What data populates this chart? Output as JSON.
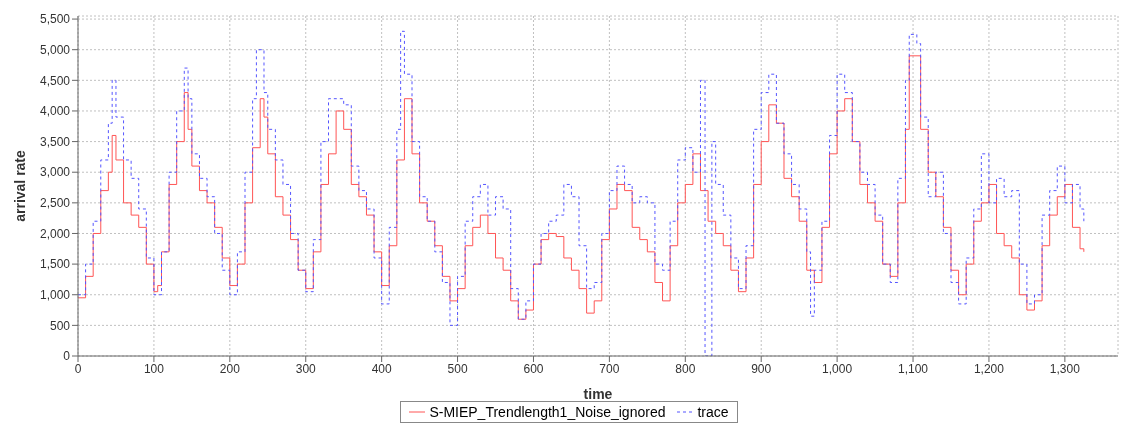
{
  "chart_data": {
    "type": "step",
    "xlabel": "time",
    "ylabel": "arrival rate",
    "xlim": [
      0,
      1370
    ],
    "ylim": [
      0,
      5550
    ],
    "xticks": [
      0,
      100,
      200,
      300,
      400,
      500,
      600,
      700,
      800,
      900,
      {
        "value": 1000,
        "label": "1,000"
      },
      {
        "value": 1100,
        "label": "1,100"
      },
      {
        "value": 1200,
        "label": "1,200"
      },
      {
        "value": 1300,
        "label": "1,300"
      }
    ],
    "yticks": [
      0,
      500,
      {
        "value": 1000,
        "label": "1,000"
      },
      {
        "value": 1500,
        "label": "1,500"
      },
      {
        "value": 2000,
        "label": "2,000"
      },
      {
        "value": 2500,
        "label": "2,500"
      },
      {
        "value": 3000,
        "label": "3,000"
      },
      {
        "value": 3500,
        "label": "3,500"
      },
      {
        "value": 4000,
        "label": "4,000"
      },
      {
        "value": 4500,
        "label": "4,500"
      },
      {
        "value": 5000,
        "label": "5,000"
      },
      {
        "value": 5500,
        "label": "5,500"
      }
    ],
    "grid": true,
    "legend": "bottom",
    "marker": "none",
    "series": [
      {
        "name": "S-MIEP_Trendlength1_Noise_ignored",
        "line_style": "solid",
        "color": "#ff5555",
        "x": [
          0,
          10,
          20,
          30,
          40,
          45,
          50,
          60,
          70,
          80,
          90,
          100,
          105,
          110,
          120,
          130,
          140,
          145,
          150,
          160,
          170,
          180,
          190,
          200,
          210,
          220,
          230,
          240,
          245,
          250,
          260,
          270,
          280,
          290,
          300,
          310,
          320,
          330,
          340,
          350,
          360,
          370,
          380,
          390,
          400,
          410,
          420,
          430,
          440,
          450,
          460,
          470,
          480,
          490,
          500,
          510,
          520,
          530,
          540,
          550,
          560,
          570,
          580,
          590,
          600,
          610,
          620,
          630,
          640,
          650,
          660,
          670,
          680,
          690,
          700,
          710,
          720,
          730,
          740,
          750,
          760,
          770,
          780,
          790,
          800,
          810,
          820,
          830,
          840,
          850,
          860,
          870,
          880,
          890,
          900,
          910,
          920,
          930,
          940,
          950,
          960,
          970,
          980,
          990,
          1000,
          1010,
          1020,
          1030,
          1040,
          1050,
          1060,
          1070,
          1080,
          1090,
          1095,
          1110,
          1120,
          1130,
          1140,
          1150,
          1160,
          1170,
          1180,
          1190,
          1200,
          1210,
          1220,
          1230,
          1240,
          1250,
          1260,
          1270,
          1280,
          1290,
          1300,
          1310,
          1320,
          1325
        ],
        "values": [
          950,
          1300,
          2000,
          2700,
          3000,
          3600,
          3200,
          2500,
          2300,
          2100,
          1500,
          1050,
          1150,
          1700,
          2800,
          3500,
          4300,
          3700,
          3100,
          2700,
          2500,
          2100,
          1600,
          1150,
          1500,
          2500,
          3400,
          4200,
          3900,
          3300,
          2600,
          2300,
          1900,
          1400,
          1100,
          1700,
          2800,
          3300,
          4000,
          3700,
          2800,
          2600,
          2300,
          1700,
          1150,
          1800,
          3200,
          4200,
          3300,
          2500,
          2200,
          1800,
          1300,
          900,
          1100,
          1800,
          2100,
          2300,
          2000,
          1600,
          1400,
          900,
          600,
          750,
          1500,
          1900,
          2000,
          1950,
          1600,
          1400,
          1100,
          700,
          900,
          1900,
          2400,
          2800,
          2700,
          2100,
          1900,
          1700,
          1200,
          900,
          1800,
          2500,
          2800,
          3300,
          2700,
          2200,
          2000,
          1800,
          1400,
          1050,
          1600,
          2800,
          3500,
          4100,
          3800,
          2900,
          2600,
          2200,
          1400,
          1200,
          2100,
          3300,
          4000,
          4200,
          3500,
          2800,
          2500,
          2200,
          1500,
          1300,
          2500,
          3700,
          4900,
          3700,
          3000,
          2600,
          2100,
          1400,
          1000,
          1500,
          2200,
          2500,
          2800,
          2000,
          1800,
          1600,
          1000,
          750,
          900,
          1800,
          2300,
          2600,
          2800,
          2100,
          1750,
          1700
        ]
      },
      {
        "name": "trace",
        "line_style": "dashed",
        "color": "#5555ff",
        "x": [
          0,
          10,
          20,
          30,
          40,
          45,
          50,
          60,
          70,
          80,
          90,
          100,
          110,
          120,
          130,
          140,
          145,
          150,
          160,
          170,
          180,
          190,
          200,
          210,
          220,
          230,
          235,
          245,
          250,
          260,
          270,
          280,
          290,
          300,
          310,
          320,
          330,
          340,
          350,
          360,
          370,
          380,
          390,
          400,
          410,
          420,
          425,
          430,
          440,
          450,
          460,
          470,
          480,
          490,
          500,
          510,
          520,
          530,
          540,
          550,
          560,
          570,
          580,
          590,
          600,
          610,
          620,
          630,
          640,
          650,
          660,
          670,
          680,
          690,
          700,
          710,
          720,
          730,
          740,
          750,
          760,
          770,
          780,
          790,
          800,
          810,
          820,
          826,
          833,
          835,
          840,
          850,
          860,
          870,
          880,
          890,
          900,
          910,
          920,
          930,
          940,
          950,
          960,
          965,
          970,
          980,
          990,
          1000,
          1010,
          1020,
          1030,
          1040,
          1050,
          1060,
          1070,
          1080,
          1090,
          1095,
          1105,
          1110,
          1120,
          1130,
          1140,
          1150,
          1160,
          1170,
          1180,
          1190,
          1200,
          1210,
          1220,
          1230,
          1240,
          1250,
          1260,
          1270,
          1280,
          1290,
          1300,
          1310,
          1320,
          1325
        ],
        "values": [
          1000,
          1500,
          2200,
          3200,
          3800,
          4500,
          3900,
          3200,
          2900,
          2400,
          1600,
          1000,
          1700,
          3000,
          4000,
          4700,
          4200,
          3300,
          2900,
          2600,
          2000,
          1400,
          1000,
          1700,
          3000,
          4200,
          5000,
          4300,
          3700,
          3200,
          2800,
          2000,
          1400,
          1050,
          1900,
          3500,
          4200,
          4200,
          4100,
          3100,
          2700,
          2400,
          1600,
          850,
          2100,
          3700,
          5300,
          4600,
          3500,
          2600,
          2200,
          1700,
          1200,
          500,
          1300,
          2200,
          2600,
          2800,
          2300,
          2600,
          2400,
          1100,
          600,
          900,
          1500,
          2000,
          2200,
          2300,
          2800,
          2600,
          1800,
          1100,
          1200,
          2000,
          2700,
          3100,
          2800,
          2500,
          2600,
          2500,
          1500,
          1400,
          2200,
          3200,
          3400,
          3000,
          4500,
          0,
          0,
          3500,
          2800,
          2300,
          1600,
          1100,
          1800,
          3700,
          4300,
          4600,
          3800,
          3300,
          2800,
          2400,
          1700,
          650,
          1400,
          2200,
          3600,
          4600,
          4300,
          3500,
          3000,
          2800,
          2300,
          1500,
          1200,
          2900,
          4500,
          5250,
          5100,
          3900,
          2600,
          3000,
          2000,
          1200,
          850,
          1600,
          2400,
          3300,
          2500,
          2900,
          2600,
          2700,
          1500,
          850,
          1000,
          2300,
          2700,
          3100,
          2500,
          2800,
          2400,
          2200
        ]
      }
    ]
  }
}
